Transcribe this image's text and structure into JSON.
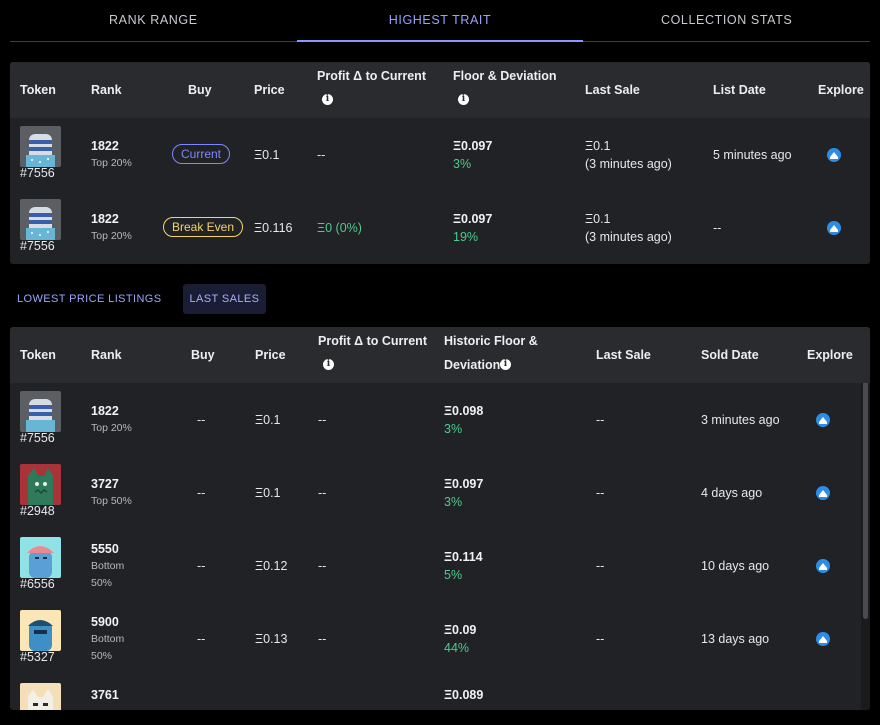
{
  "tabs": [
    "RANK RANGE",
    "HIGHEST TRAIT",
    "COLLECTION STATS"
  ],
  "table1": {
    "headers": {
      "token": "Token",
      "rank": "Rank",
      "buy": "Buy",
      "price": "Price",
      "profit": "Profit Δ to Current",
      "floor": "Floor & Deviation",
      "last_sale": "Last Sale",
      "list_date": "List Date",
      "explore": "Explore"
    },
    "rows": [
      {
        "token": "#7556",
        "rank": "1822",
        "rank_sub": "Top 20%",
        "buy": "Current",
        "price": "Ξ0.1",
        "profit": "--",
        "floor": "Ξ0.097",
        "deviation": "3%",
        "last_sale": "Ξ0.1",
        "last_sale_ago": "(3 minutes ago)",
        "list_date": "5 minutes ago",
        "thumb": "gray"
      },
      {
        "token": "#7556",
        "rank": "1822",
        "rank_sub": "Top 20%",
        "buy": "Break Even",
        "price": "Ξ0.116",
        "profit": "Ξ0 (0%)",
        "floor": "Ξ0.097",
        "deviation": "19%",
        "last_sale": "Ξ0.1",
        "last_sale_ago": "(3 minutes ago)",
        "list_date": "--",
        "thumb": "gray"
      }
    ]
  },
  "subtabs": [
    "LOWEST PRICE LISTINGS",
    "LAST SALES"
  ],
  "table2": {
    "headers": {
      "token": "Token",
      "rank": "Rank",
      "buy": "Buy",
      "price": "Price",
      "profit": "Profit Δ to Current",
      "floor_line1": "Historic Floor &",
      "floor_line2": "Deviation",
      "last_sale": "Last Sale",
      "sold_date": "Sold Date",
      "explore": "Explore"
    },
    "rows": [
      {
        "token": "#7556",
        "rank": "1822",
        "rank_sub1": "Top 20%",
        "rank_sub2": "",
        "buy": "--",
        "price": "Ξ0.1",
        "profit": "--",
        "floor": "Ξ0.098",
        "deviation": "3%",
        "last_sale": "--",
        "sold_date": "3 minutes ago",
        "thumb": "gray"
      },
      {
        "token": "#2948",
        "rank": "3727",
        "rank_sub1": "Top 50%",
        "rank_sub2": "",
        "buy": "--",
        "price": "Ξ0.1",
        "profit": "--",
        "floor": "Ξ0.097",
        "deviation": "3%",
        "last_sale": "--",
        "sold_date": "4 days ago",
        "thumb": "red"
      },
      {
        "token": "#6556",
        "rank": "5550",
        "rank_sub1": "Bottom",
        "rank_sub2": "50%",
        "buy": "--",
        "price": "Ξ0.12",
        "profit": "--",
        "floor": "Ξ0.114",
        "deviation": "5%",
        "last_sale": "--",
        "sold_date": "10 days ago",
        "thumb": "cyan"
      },
      {
        "token": "#5327",
        "rank": "5900",
        "rank_sub1": "Bottom",
        "rank_sub2": "50%",
        "buy": "--",
        "price": "Ξ0.13",
        "profit": "--",
        "floor": "Ξ0.09",
        "deviation": "44%",
        "last_sale": "--",
        "sold_date": "13 days ago",
        "thumb": "cream"
      },
      {
        "token": "",
        "rank": "3761",
        "rank_sub1": "",
        "rank_sub2": "",
        "buy": "",
        "price": "",
        "profit": "",
        "floor": "Ξ0.089",
        "deviation": "",
        "last_sale": "",
        "sold_date": "",
        "thumb": "beige"
      }
    ]
  },
  "colors": {
    "accent": "#8d96ff",
    "positive": "#4ecb8d",
    "break_even": "#f4d46a",
    "explore": "#2b8de8"
  },
  "icons": {
    "info": "info-icon",
    "explore": "opensea-icon"
  }
}
